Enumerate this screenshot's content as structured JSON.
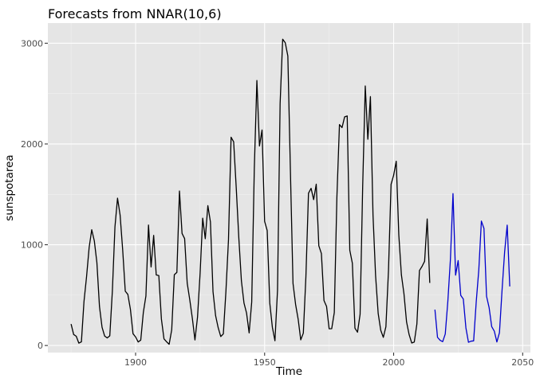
{
  "chart_data": {
    "type": "line",
    "title": "Forecasts from NNAR(10,6)",
    "xlabel": "Time",
    "ylabel": "sunspotarea",
    "xlim": [
      1866,
      2053
    ],
    "ylim": [
      -70,
      3200
    ],
    "x_ticks": [
      1900,
      1950,
      2000,
      2050
    ],
    "x_tick_labels": [
      "1900",
      "1950",
      "2000",
      "2050"
    ],
    "y_ticks": [
      0,
      1000,
      2000,
      3000
    ],
    "y_tick_labels": [
      "0",
      "1000",
      "2000",
      "3000"
    ],
    "grid": true,
    "background": "#e5e5e5",
    "series": [
      {
        "role": "observed",
        "color": "#000000",
        "start": 1875,
        "values": [
          213,
          109,
          92,
          24,
          36,
          436,
          684,
          973,
          1149,
          1039,
          823,
          388,
          181,
          94,
          75,
          96,
          541,
          1178,
          1462,
          1294,
          948,
          539,
          507,
          358,
          117,
          85,
          35,
          54,
          328,
          492,
          1196,
          779,
          1093,
          700,
          694,
          263,
          66,
          37,
          12,
          156,
          702,
          726,
          1533,
          1112,
          1061,
          619,
          453,
          268,
          55,
          283,
          717,
          1264,
          1060,
          1388,
          1227,
          535,
          297,
          177,
          89,
          115,
          536,
          1052,
          2067,
          2022,
          1565,
          1068,
          642,
          422,
          322,
          125,
          432,
          1752,
          2630,
          1980,
          2139,
          1232,
          1141,
          420,
          181,
          47,
          549,
          2400,
          3040,
          3004,
          2873,
          1724,
          617,
          408,
          261,
          56,
          123,
          685,
          1511,
          1560,
          1448,
          1601,
          990,
          913,
          446,
          388,
          166,
          167,
          327,
          1466,
          2193,
          2163,
          2269,
          2278,
          946,
          817,
          172,
          132,
          310,
          1580,
          2576,
          2047,
          2470,
          1295,
          694,
          319,
          151,
          81,
          186,
          745,
          1600,
          1690,
          1829,
          1097,
          702,
          513,
          234,
          108,
          25,
          35,
          213,
          744,
          785,
          836,
          1256,
          621
        ]
      },
      {
        "role": "forecast",
        "color": "#0000cc",
        "start": 2016,
        "values": [
          356,
          81,
          52,
          38,
          114,
          438,
          856,
          1508,
          698,
          843,
          498,
          461,
          175,
          32,
          43,
          46,
          433,
          751,
          1235,
          1162,
          489,
          375,
          187,
          143,
          35,
          127,
          545,
          928,
          1195,
          586
        ]
      }
    ]
  }
}
